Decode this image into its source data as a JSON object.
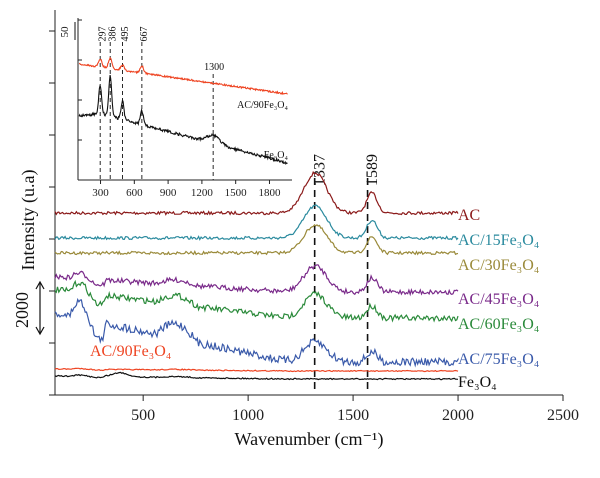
{
  "chart_data": [
    {
      "type": "line",
      "xlabel": "Wavenumber (cm⁻¹)",
      "ylabel": "Intensity (u.a)",
      "xlim": [
        80,
        2500
      ],
      "x_ticks": [
        500,
        1000,
        1500,
        2000,
        2500
      ],
      "x_tick_labels": [
        "500",
        "1000",
        "1500",
        "2000",
        "2500"
      ],
      "y_tick_labels": [],
      "peak_lines": [
        {
          "x": 1337,
          "label": "1337"
        },
        {
          "x": 1589,
          "label": "1589"
        }
      ],
      "scale_bar": {
        "value": 2000,
        "label": "2000"
      },
      "series": [
        {
          "name": "AC",
          "color": "#8b1a1a",
          "baseline": 213,
          "peaks": [
            [
              1320,
              40,
              22
            ],
            [
              1590,
              20,
              10
            ]
          ],
          "start_bump": 0,
          "noise": 1.5
        },
        {
          "name": "AC/15Fe₃O₄",
          "color": "#2a8a9e",
          "baseline": 238,
          "peaks": [
            [
              1320,
              32,
              22
            ],
            [
              1590,
              18,
              10
            ]
          ],
          "start_bump": 0,
          "noise": 1.5
        },
        {
          "name": "AC/30Fe₃O₄",
          "color": "#9a8a3a",
          "baseline": 253,
          "peaks": [
            [
              1320,
              28,
              22
            ],
            [
              1590,
              16,
              10
            ]
          ],
          "start_bump": 0,
          "noise": 1.5
        },
        {
          "name": "AC/45Fe₃O₄",
          "color": "#7a2a8a",
          "baseline": 292,
          "peaks": [
            [
              1320,
              26,
              22
            ],
            [
              1590,
              14,
              10
            ]
          ],
          "start_bump": 15,
          "noise": 2.5
        },
        {
          "name": "AC/60Fe₃O₄",
          "color": "#2a8a3a",
          "baseline": 318,
          "peaks": [
            [
              1320,
              24,
              22
            ],
            [
              1590,
              12,
              10
            ]
          ],
          "start_bump": 28,
          "noise": 3
        },
        {
          "name": "AC/75Fe₃O₄",
          "color": "#3a5aaa",
          "baseline": 362,
          "peaks": [
            [
              1320,
              20,
              22
            ],
            [
              1590,
              10,
              10
            ]
          ],
          "start_bump": 48,
          "noise": 4
        },
        {
          "name": "AC/90Fe₃O₄",
          "color": "#ee4422",
          "baseline": 371,
          "peaks": [],
          "start_bump": 2,
          "noise": 0.5
        },
        {
          "name": "Fe₃O₄",
          "color": "#111111",
          "baseline": 379,
          "peaks": [
            [
              390,
              4,
              15
            ]
          ],
          "start_bump": 3,
          "noise": 0.6
        }
      ]
    },
    {
      "type": "line",
      "xlim": [
        100,
        2000
      ],
      "x_ticks": [
        300,
        600,
        900,
        1200,
        1500,
        1800
      ],
      "x_tick_labels": [
        "300",
        "600",
        "900",
        "1200",
        "1500",
        "1800"
      ],
      "peak_lines": [
        {
          "x": 297,
          "label": "297"
        },
        {
          "x": 386,
          "label": "386"
        },
        {
          "x": 495,
          "label": "495"
        },
        {
          "x": 667,
          "label": "667"
        },
        {
          "x": 1300,
          "label": "1300"
        }
      ],
      "scale_bar": {
        "value": 50,
        "label": "50"
      },
      "series": [
        {
          "name": "AC/90Fe₃O₄",
          "color": "#ee4422"
        },
        {
          "name": "Fe₃O₄",
          "color": "#111111"
        }
      ]
    }
  ]
}
